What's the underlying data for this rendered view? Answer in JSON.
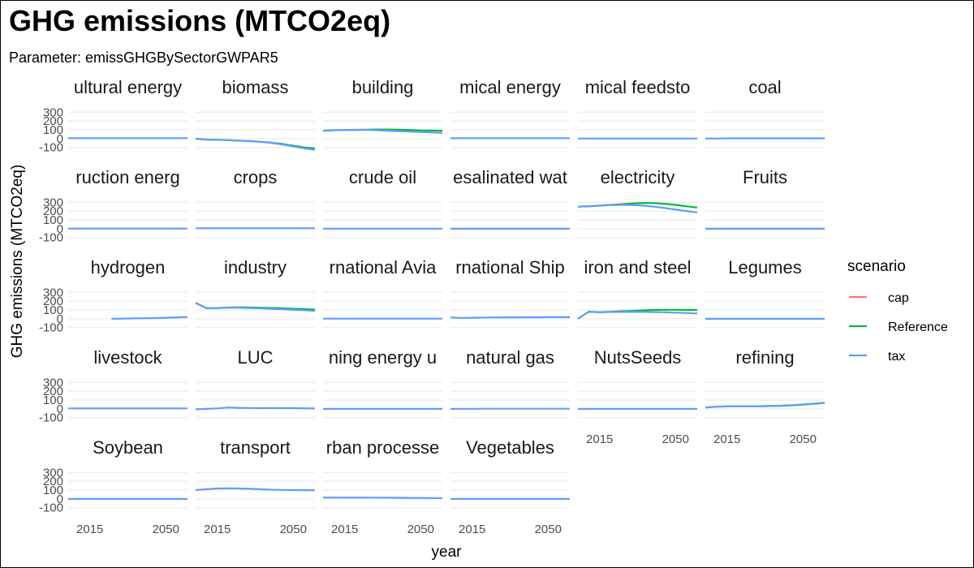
{
  "title": "GHG emissions (MTCO2eq)",
  "subtitle": "Parameter: emissGHGBySectorGWPAR5",
  "chart_data": {
    "type": "line",
    "facet_columns": 6,
    "xlabel": "year",
    "ylabel": "GHG emissions (MTCO2eq)",
    "xlim": [
      2005,
      2060
    ],
    "ylim": [
      -130,
      330
    ],
    "x_ticks": [
      2015,
      2050
    ],
    "y_ticks": [
      300,
      200,
      100,
      0,
      -100
    ],
    "grid": true,
    "legend": {
      "title": "scenario",
      "placement": "right",
      "entries": [
        {
          "name": "cap",
          "color": "#F8766D"
        },
        {
          "name": "Reference",
          "color": "#00BA38"
        },
        {
          "name": "tax",
          "color": "#619CFF"
        }
      ]
    },
    "x": [
      2005,
      2010,
      2015,
      2020,
      2025,
      2030,
      2035,
      2040,
      2045,
      2050,
      2055,
      2060
    ],
    "panels": [
      {
        "label": "ultural energy",
        "series": [
          {
            "name": "tax",
            "values": [
              5,
              5,
              5,
              5,
              5,
              5,
              5,
              5,
              5,
              5,
              5,
              5
            ]
          }
        ]
      },
      {
        "label": "biomass",
        "series": [
          {
            "name": "Reference",
            "values": [
              0,
              -10,
              -12,
              -18,
              -22,
              -28,
              -35,
              -45,
              -60,
              -80,
              -100,
              -110
            ]
          },
          {
            "name": "tax",
            "values": [
              0,
              -10,
              -12,
              -18,
              -22,
              -28,
              -36,
              -48,
              -66,
              -88,
              -110,
              -125
            ]
          }
        ]
      },
      {
        "label": "building",
        "series": [
          {
            "name": "Reference",
            "values": [
              90,
              95,
              98,
              100,
              102,
              104,
              104,
              102,
              98,
              94,
              92,
              90
            ]
          },
          {
            "name": "tax",
            "values": [
              90,
              95,
              98,
              99,
              98,
              95,
              90,
              85,
              80,
              75,
              70,
              65
            ]
          }
        ]
      },
      {
        "label": "mical energy",
        "series": [
          {
            "name": "tax",
            "values": [
              5,
              5,
              5,
              5,
              5,
              5,
              5,
              5,
              5,
              5,
              5,
              5
            ]
          }
        ]
      },
      {
        "label": "mical feedsto",
        "series": [
          {
            "name": "tax",
            "values": [
              2,
              2,
              2,
              2,
              2,
              2,
              2,
              2,
              2,
              2,
              2,
              2
            ]
          }
        ]
      },
      {
        "label": "coal",
        "series": [
          {
            "name": "tax",
            "values": [
              2,
              2,
              3,
              3,
              3,
              3,
              3,
              3,
              3,
              3,
              3,
              3
            ]
          }
        ]
      },
      {
        "label": "ruction energ",
        "series": [
          {
            "name": "tax",
            "values": [
              2,
              2,
              2,
              2,
              2,
              2,
              2,
              2,
              2,
              2,
              2,
              2
            ]
          }
        ]
      },
      {
        "label": "crops",
        "series": [
          {
            "name": "tax",
            "values": [
              5,
              5,
              5,
              5,
              5,
              5,
              5,
              5,
              5,
              5,
              5,
              5
            ]
          }
        ]
      },
      {
        "label": "crude oil",
        "series": [
          {
            "name": "tax",
            "values": [
              1,
              1,
              1,
              1,
              1,
              1,
              1,
              1,
              1,
              1,
              1,
              1
            ]
          }
        ]
      },
      {
        "label": "esalinated wat",
        "series": [
          {
            "name": "tax",
            "values": [
              0,
              0,
              0,
              0,
              0,
              0,
              0,
              0,
              0,
              0,
              0,
              0
            ]
          }
        ]
      },
      {
        "label": "electricity",
        "series": [
          {
            "name": "Reference",
            "values": [
              250,
              255,
              262,
              270,
              278,
              286,
              292,
              290,
              282,
              270,
              255,
              240
            ]
          },
          {
            "name": "tax",
            "values": [
              250,
              255,
              262,
              268,
              270,
              268,
              262,
              250,
              235,
              218,
              200,
              185
            ]
          }
        ]
      },
      {
        "label": "Fruits",
        "series": [
          {
            "name": "tax",
            "values": [
              0,
              0,
              0,
              0,
              0,
              0,
              0,
              0,
              0,
              0,
              0,
              0
            ]
          }
        ]
      },
      {
        "label": "hydrogen",
        "series": [
          {
            "name": "tax",
            "values": [
              null,
              null,
              null,
              null,
              0,
              2,
              4,
              6,
              8,
              12,
              16,
              20
            ]
          }
        ]
      },
      {
        "label": "industry",
        "series": [
          {
            "name": "Reference",
            "values": [
              180,
              120,
              122,
              128,
              130,
              128,
              126,
              122,
              118,
              114,
              110,
              105
            ]
          },
          {
            "name": "tax",
            "values": [
              180,
              120,
              121,
              126,
              126,
              122,
              118,
              112,
              108,
              102,
              97,
              90
            ]
          }
        ]
      },
      {
        "label": "rnational Avia",
        "series": [
          {
            "name": "tax",
            "values": [
              2,
              2,
              2,
              2,
              2,
              2,
              2,
              2,
              2,
              2,
              2,
              2
            ]
          }
        ]
      },
      {
        "label": "rnational Ship",
        "series": [
          {
            "name": "tax",
            "values": [
              15,
              10,
              12,
              14,
              15,
              16,
              16,
              17,
              17,
              18,
              18,
              18
            ]
          }
        ]
      },
      {
        "label": "iron and steel",
        "series": [
          {
            "name": "Reference",
            "values": [
              0,
              80,
              75,
              80,
              85,
              90,
              95,
              100,
              102,
              102,
              100,
              100
            ]
          },
          {
            "name": "tax",
            "values": [
              0,
              80,
              74,
              77,
              78,
              78,
              78,
              76,
              73,
              70,
              65,
              60
            ]
          }
        ]
      },
      {
        "label": "Legumes",
        "series": [
          {
            "name": "tax",
            "values": [
              0,
              0,
              0,
              0,
              0,
              0,
              0,
              0,
              0,
              0,
              0,
              0
            ]
          }
        ]
      },
      {
        "label": "livestock",
        "series": [
          {
            "name": "tax",
            "values": [
              5,
              5,
              5,
              5,
              5,
              5,
              5,
              5,
              5,
              5,
              5,
              5
            ]
          }
        ]
      },
      {
        "label": "LUC",
        "series": [
          {
            "name": "tax",
            "values": [
              -5,
              0,
              5,
              15,
              12,
              10,
              8,
              10,
              8,
              8,
              6,
              5
            ]
          }
        ]
      },
      {
        "label": "ning energy u",
        "series": [
          {
            "name": "tax",
            "values": [
              0,
              0,
              0,
              0,
              0,
              0,
              0,
              0,
              0,
              0,
              0,
              0
            ]
          }
        ]
      },
      {
        "label": "natural gas",
        "series": [
          {
            "name": "tax",
            "values": [
              0,
              1,
              1,
              2,
              2,
              2,
              2,
              2,
              2,
              2,
              2,
              2
            ]
          }
        ]
      },
      {
        "label": "NutsSeeds",
        "series": [
          {
            "name": "tax",
            "values": [
              0,
              0,
              0,
              0,
              0,
              0,
              0,
              0,
              0,
              0,
              0,
              0
            ]
          }
        ]
      },
      {
        "label": "refining",
        "series": [
          {
            "name": "Reference",
            "values": [
              15,
              25,
              28,
              30,
              30,
              30,
              32,
              35,
              40,
              48,
              58,
              68
            ]
          },
          {
            "name": "tax",
            "values": [
              15,
              25,
              28,
              30,
              30,
              30,
              32,
              36,
              42,
              50,
              60,
              70
            ]
          }
        ]
      },
      {
        "label": "Soybean",
        "series": [
          {
            "name": "tax",
            "values": [
              0,
              0,
              0,
              0,
              0,
              0,
              0,
              0,
              0,
              0,
              0,
              0
            ]
          }
        ]
      },
      {
        "label": "transport",
        "series": [
          {
            "name": "tax",
            "values": [
              100,
              110,
              118,
              120,
              118,
              115,
              110,
              105,
              102,
              100,
              100,
              98
            ]
          }
        ]
      },
      {
        "label": "rban processe",
        "series": [
          {
            "name": "tax",
            "values": [
              15,
              15,
              15,
              15,
              15,
              14,
              14,
              13,
              12,
              11,
              10,
              9
            ]
          }
        ]
      },
      {
        "label": "Vegetables",
        "series": [
          {
            "name": "tax",
            "values": [
              0,
              0,
              0,
              0,
              0,
              0,
              0,
              0,
              0,
              0,
              0,
              0
            ]
          }
        ]
      }
    ]
  }
}
